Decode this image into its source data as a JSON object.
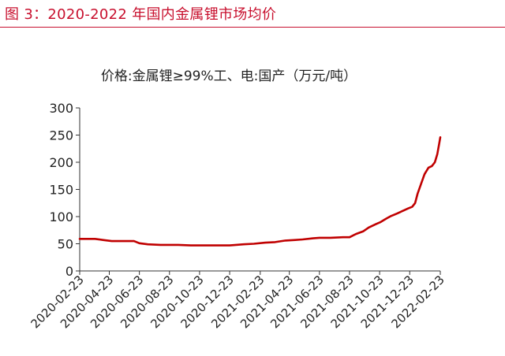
{
  "figure_title": "图 3：2020-2022 年国内金属锂市场均价",
  "chart_data": {
    "type": "line",
    "title": "价格:金属锂≥99%工、电:国产（万元/吨）",
    "xlabel": "",
    "ylabel": "",
    "x_tick_labels": [
      "2020-02-23",
      "2020-04-23",
      "2020-06-23",
      "2020-08-23",
      "2020-10-23",
      "2020-12-23",
      "2021-02-23",
      "2021-04-23",
      "2021-06-23",
      "2021-08-23",
      "2021-10-23",
      "2021-12-23",
      "2022-02-23"
    ],
    "y_ticks": [
      0,
      50,
      100,
      150,
      200,
      250,
      300
    ],
    "ylim": [
      0,
      300
    ],
    "xlim": [
      "2020-02-23",
      "2022-02-23"
    ],
    "grid": false,
    "legend": "none",
    "series": [
      {
        "name": "",
        "color": "#c00000",
        "points": [
          [
            "2020-02-23",
            59
          ],
          [
            "2020-03-25",
            59
          ],
          [
            "2020-04-10",
            57
          ],
          [
            "2020-04-28",
            55
          ],
          [
            "2020-05-25",
            55
          ],
          [
            "2020-06-12",
            55
          ],
          [
            "2020-06-23",
            51
          ],
          [
            "2020-07-10",
            49
          ],
          [
            "2020-08-05",
            48
          ],
          [
            "2020-09-10",
            48
          ],
          [
            "2020-10-05",
            47
          ],
          [
            "2020-11-10",
            47
          ],
          [
            "2020-12-23",
            47
          ],
          [
            "2021-01-05",
            48
          ],
          [
            "2021-01-20",
            49
          ],
          [
            "2021-02-10",
            50
          ],
          [
            "2021-03-05",
            52
          ],
          [
            "2021-03-25",
            53
          ],
          [
            "2021-04-15",
            56
          ],
          [
            "2021-05-05",
            57
          ],
          [
            "2021-05-20",
            58
          ],
          [
            "2021-06-10",
            60
          ],
          [
            "2021-06-23",
            61
          ],
          [
            "2021-07-15",
            61
          ],
          [
            "2021-08-10",
            62
          ],
          [
            "2021-08-23",
            62
          ],
          [
            "2021-09-05",
            68
          ],
          [
            "2021-09-20",
            73
          ],
          [
            "2021-10-01",
            80
          ],
          [
            "2021-10-15",
            86
          ],
          [
            "2021-10-25",
            90
          ],
          [
            "2021-11-05",
            96
          ],
          [
            "2021-11-15",
            101
          ],
          [
            "2021-11-28",
            106
          ],
          [
            "2021-12-10",
            111
          ],
          [
            "2021-12-20",
            115
          ],
          [
            "2021-12-28",
            118
          ],
          [
            "2022-01-03",
            125
          ],
          [
            "2022-01-08",
            142
          ],
          [
            "2022-01-15",
            160
          ],
          [
            "2022-01-22",
            178
          ],
          [
            "2022-01-30",
            190
          ],
          [
            "2022-02-06",
            193
          ],
          [
            "2022-02-12",
            200
          ],
          [
            "2022-02-17",
            215
          ],
          [
            "2022-02-21",
            235
          ],
          [
            "2022-02-23",
            246
          ]
        ]
      }
    ]
  }
}
